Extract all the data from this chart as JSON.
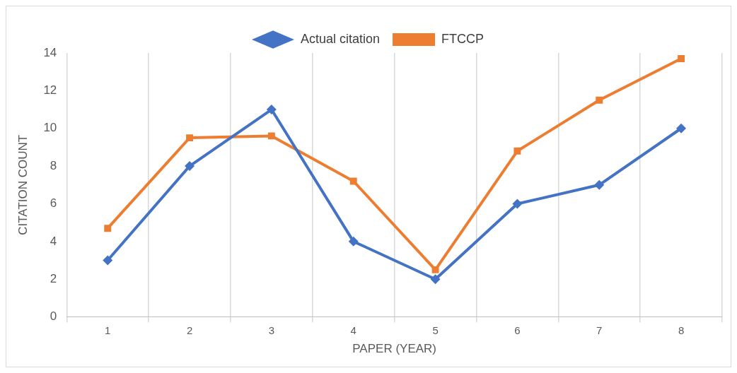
{
  "chart_data": {
    "type": "line",
    "xlabel": "PAPER (YEAR)",
    "ylabel": "CITATION COUNT",
    "categories": [
      "1",
      "2",
      "3",
      "4",
      "5",
      "6",
      "7",
      "8"
    ],
    "series": [
      {
        "name": "Actual citation",
        "color": "#4472c4",
        "marker": "diamond",
        "values": [
          3,
          8,
          11,
          4,
          2,
          6,
          7,
          10
        ]
      },
      {
        "name": "FTCCP",
        "color": "#ed7d31",
        "marker": "square",
        "values": [
          4.7,
          9.5,
          9.6,
          7.2,
          2.5,
          8.8,
          11.5,
          13.7
        ]
      }
    ],
    "ylim": [
      0,
      14
    ],
    "yticks": [
      0,
      2,
      4,
      6,
      8,
      10,
      12,
      14
    ],
    "grid": "x",
    "legend": "top",
    "line_style": "solid"
  }
}
